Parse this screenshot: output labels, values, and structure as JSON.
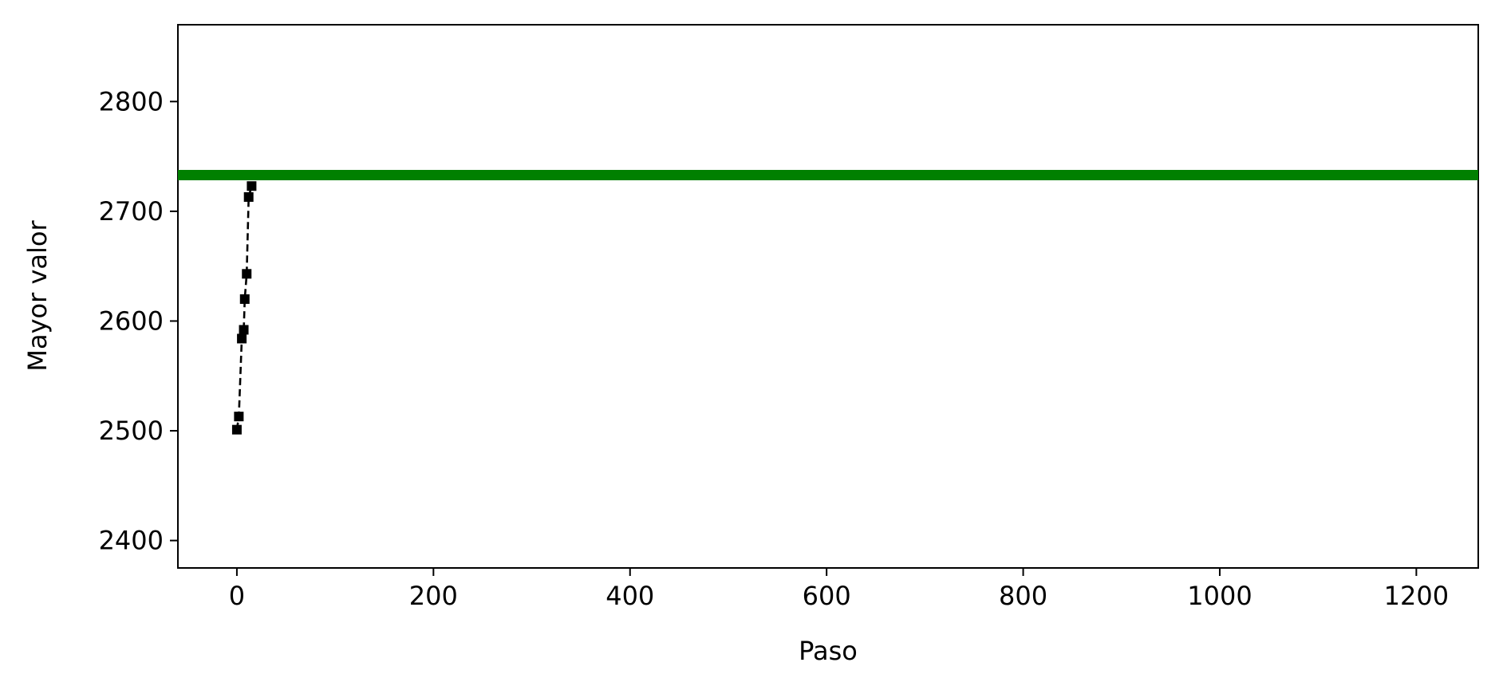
{
  "chart_data": {
    "type": "line",
    "xlabel": "Paso",
    "ylabel": "Mayor valor",
    "xlim": [
      -60,
      1263
    ],
    "ylim": [
      2375,
      2870
    ],
    "grid": false,
    "x_ticks": [
      0,
      200,
      400,
      600,
      800,
      1000,
      1200
    ],
    "y_ticks": [
      2400,
      2500,
      2600,
      2700,
      2800
    ],
    "series": [
      {
        "style": "dashed-square-markers",
        "color": "#000000",
        "x": [
          0,
          2,
          5,
          7,
          8,
          10,
          12,
          15
        ],
        "y": [
          2501,
          2513,
          2584,
          2592,
          2620,
          2643,
          2713,
          2723
        ]
      },
      {
        "style": "thick-horizontal-line",
        "color": "#008000",
        "x": [
          -60,
          1263
        ],
        "y": [
          2733,
          2733
        ]
      }
    ]
  }
}
